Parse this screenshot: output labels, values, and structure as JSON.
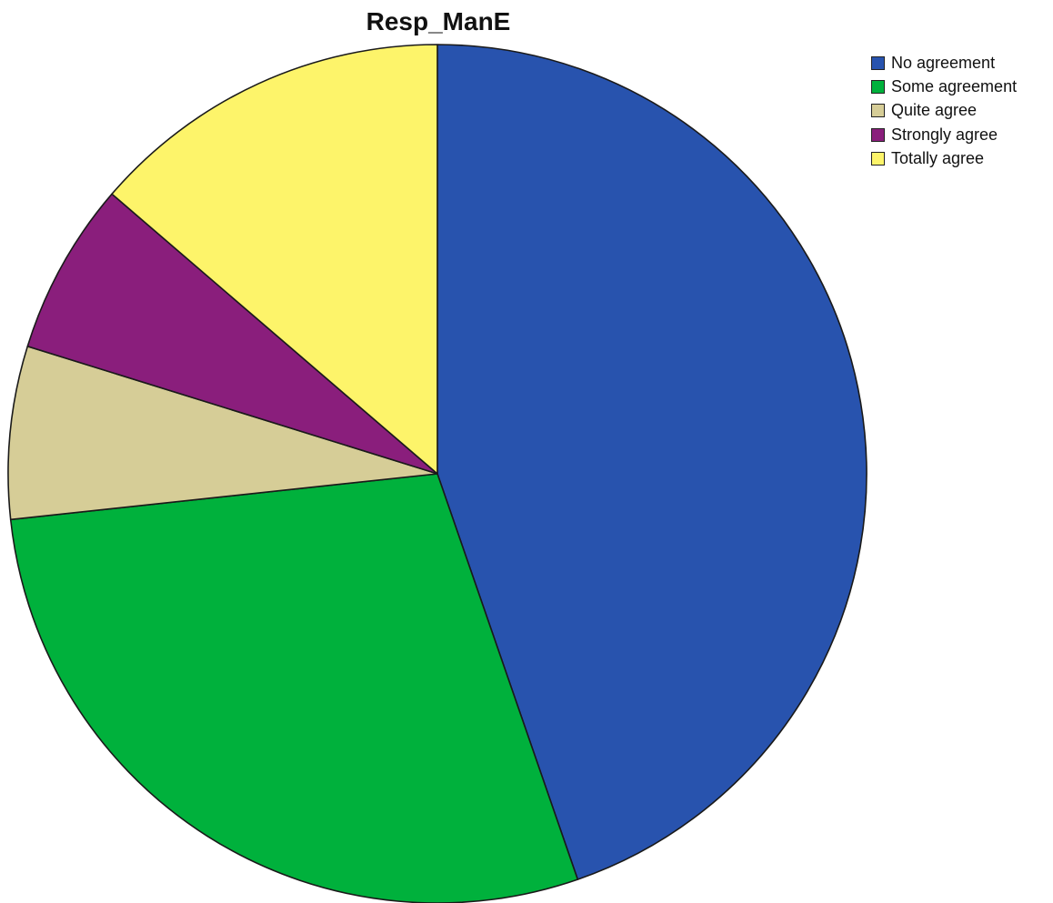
{
  "chart_data": {
    "type": "pie",
    "title": "Resp_ManE",
    "legend_position": "top-right",
    "slices": [
      {
        "label": "No agreement",
        "value": 44.7,
        "color": "#2853AE"
      },
      {
        "label": "Some agreement",
        "value": 28.6,
        "color": "#00B13C"
      },
      {
        "label": "Quite agree",
        "value": 6.5,
        "color": "#D6CD97"
      },
      {
        "label": "Strongly agree",
        "value": 6.5,
        "color": "#8A1E7C"
      },
      {
        "label": "Totally agree",
        "value": 13.7,
        "color": "#FDF46A"
      }
    ]
  }
}
